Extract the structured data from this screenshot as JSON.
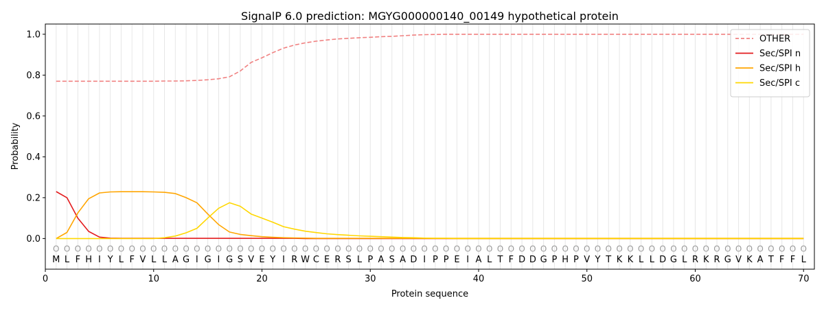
{
  "chart_data": {
    "type": "line",
    "title": "SignalP 6.0 prediction: MGYG000000140_00149 hypothetical protein",
    "xlabel": "Protein sequence",
    "ylabel": "Probability",
    "xlim": [
      0,
      71
    ],
    "ylim": [
      -0.15,
      1.05
    ],
    "xticks": [
      0,
      10,
      20,
      30,
      40,
      50,
      60,
      70
    ],
    "yticks": [
      0.0,
      0.2,
      0.4,
      0.6,
      0.8,
      1.0
    ],
    "ytick_labels": [
      "0.0",
      "0.2",
      "0.4",
      "0.6",
      "0.8",
      "1.0"
    ],
    "grid": "vertical lines at each residue",
    "legend_position": "top-right",
    "sequence": [
      "M",
      "L",
      "F",
      "H",
      "I",
      "Y",
      "L",
      "F",
      "V",
      "L",
      "L",
      "A",
      "G",
      "I",
      "G",
      "I",
      "G",
      "S",
      "V",
      "E",
      "Y",
      "I",
      "R",
      "W",
      "C",
      "E",
      "R",
      "S",
      "L",
      "P",
      "A",
      "S",
      "A",
      "D",
      "I",
      "P",
      "P",
      "E",
      "I",
      "A",
      "L",
      "T",
      "F",
      "D",
      "D",
      "G",
      "P",
      "H",
      "P",
      "V",
      "Y",
      "T",
      "K",
      "K",
      "L",
      "L",
      "D",
      "G",
      "L",
      "R",
      "K",
      "R",
      "G",
      "V",
      "K",
      "A",
      "T",
      "F",
      "F",
      "L"
    ],
    "prediction_marker": "O",
    "x": [
      1,
      2,
      3,
      4,
      5,
      6,
      7,
      8,
      9,
      10,
      11,
      12,
      13,
      14,
      15,
      16,
      17,
      18,
      19,
      20,
      21,
      22,
      23,
      24,
      25,
      26,
      27,
      28,
      29,
      30,
      31,
      32,
      33,
      34,
      35,
      36,
      37,
      38,
      39,
      40,
      41,
      42,
      43,
      44,
      45,
      46,
      47,
      48,
      49,
      50,
      51,
      52,
      53,
      54,
      55,
      56,
      57,
      58,
      59,
      60,
      61,
      62,
      63,
      64,
      65,
      66,
      67,
      68,
      69,
      70
    ],
    "series": [
      {
        "name": "OTHER",
        "color": "#f08080",
        "dashed": true,
        "values": [
          0.77,
          0.77,
          0.77,
          0.77,
          0.77,
          0.77,
          0.77,
          0.77,
          0.77,
          0.77,
          0.771,
          0.771,
          0.772,
          0.774,
          0.777,
          0.782,
          0.792,
          0.82,
          0.862,
          0.885,
          0.91,
          0.932,
          0.947,
          0.958,
          0.966,
          0.972,
          0.977,
          0.98,
          0.983,
          0.985,
          0.988,
          0.99,
          0.993,
          0.996,
          0.998,
          0.999,
          1.0,
          1.0,
          1.0,
          1.0,
          1.0,
          1.0,
          1.0,
          1.0,
          1.0,
          1.0,
          1.0,
          1.0,
          1.0,
          1.0,
          1.0,
          1.0,
          1.0,
          1.0,
          1.0,
          1.0,
          1.0,
          1.0,
          1.0,
          1.0,
          1.0,
          1.0,
          1.0,
          1.0,
          1.0,
          1.0,
          1.0,
          1.0,
          1.0,
          1.0
        ]
      },
      {
        "name": "Sec/SPI n",
        "color": "#e31a1c",
        "dashed": false,
        "values": [
          0.23,
          0.2,
          0.1,
          0.035,
          0.007,
          0.002,
          0.001,
          0.001,
          0.001,
          0.001,
          0.001,
          0.001,
          0.001,
          0.001,
          0.001,
          0.001,
          0.001,
          0.001,
          0.001,
          0.001,
          0.001,
          0.001,
          0.001,
          0,
          0,
          0,
          0,
          0,
          0,
          0,
          0,
          0,
          0,
          0,
          0,
          0,
          0,
          0,
          0,
          0,
          0,
          0,
          0,
          0,
          0,
          0,
          0,
          0,
          0,
          0,
          0,
          0,
          0,
          0,
          0,
          0,
          0,
          0,
          0,
          0,
          0,
          0,
          0,
          0,
          0,
          0,
          0,
          0,
          0,
          0
        ]
      },
      {
        "name": "Sec/SPI h",
        "color": "#ffa500",
        "dashed": false,
        "values": [
          0.0,
          0.03,
          0.125,
          0.195,
          0.223,
          0.228,
          0.229,
          0.229,
          0.229,
          0.228,
          0.226,
          0.22,
          0.2,
          0.175,
          0.12,
          0.068,
          0.032,
          0.02,
          0.014,
          0.009,
          0.006,
          0.004,
          0.003,
          0.002,
          0.001,
          0.001,
          0.001,
          0.001,
          0.001,
          0.001,
          0.001,
          0.001,
          0.001,
          0.001,
          0.001,
          0.001,
          0.001,
          0.001,
          0.001,
          0.001,
          0.001,
          0.001,
          0.001,
          0.001,
          0.001,
          0.001,
          0.001,
          0.001,
          0.001,
          0.001,
          0.001,
          0.001,
          0.001,
          0.001,
          0.001,
          0.001,
          0.001,
          0.001,
          0.001,
          0.001,
          0.001,
          0.001,
          0.001,
          0.001,
          0.001,
          0.001,
          0.001,
          0.001,
          0.001,
          0.001
        ]
      },
      {
        "name": "Sec/SPI c",
        "color": "#ffd700",
        "dashed": false,
        "values": [
          0.0,
          0.0,
          0.0,
          0.0,
          0.0,
          0.0,
          0.0,
          0.0,
          0.0,
          0.0,
          0.004,
          0.012,
          0.028,
          0.05,
          0.1,
          0.148,
          0.175,
          0.158,
          0.12,
          0.1,
          0.08,
          0.058,
          0.046,
          0.036,
          0.029,
          0.023,
          0.019,
          0.016,
          0.013,
          0.011,
          0.009,
          0.007,
          0.005,
          0.004,
          0.002,
          0.001,
          0.001,
          0.0,
          0.0,
          0.0,
          0.0,
          0.0,
          0.0,
          0.0,
          0.0,
          0.0,
          0.0,
          0.0,
          0.0,
          0.0,
          0.0,
          0.0,
          0.0,
          0.0,
          0.0,
          0.0,
          0.0,
          0.0,
          0.0,
          0.0,
          0.0,
          0.0,
          0.0,
          0.0,
          0.0,
          0.0,
          0.0,
          0.0,
          0.0,
          0.0
        ]
      }
    ]
  }
}
